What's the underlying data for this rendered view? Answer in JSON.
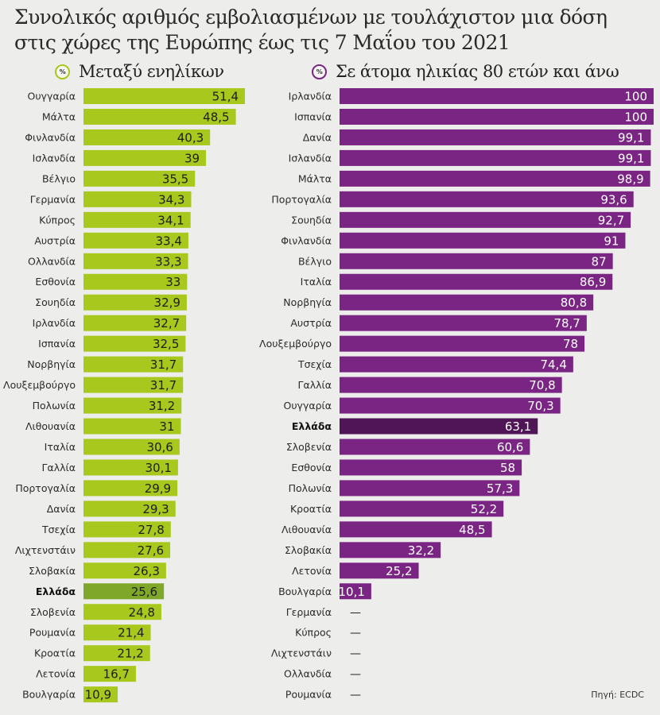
{
  "title_line1": "Συνολικός αριθμός εμβολιασμένων με τουλάχιστον μια δόση",
  "title_line2": "στις χώρες της Ευρώπης έως τις 7 Μαΐου του 2021",
  "source": "Πηγή: ECDC",
  "chart_data": [
    {
      "type": "bar",
      "orientation": "horizontal",
      "title": "Μεταξύ ενηλίκων",
      "unit_icon": "%",
      "color": "#a8c81e",
      "highlight_color": "#7fa82a",
      "highlight": "Ελλάδα",
      "xlim": [
        0,
        100
      ],
      "categories": [
        "Ουγγαρία",
        "Μάλτα",
        "Φινλανδία",
        "Ισλανδία",
        "Βέλγιο",
        "Γερμανία",
        "Κύπρος",
        "Αυστρία",
        "Ολλανδία",
        "Εσθονία",
        "Σουηδία",
        "Ιρλανδία",
        "Ισπανία",
        "Νορβηγία",
        "Λουξεμβούργο",
        "Πολωνία",
        "Λιθουανία",
        "Ιταλία",
        "Γαλλία",
        "Πορτογαλία",
        "Δανία",
        "Τσεχία",
        "Λιχτενστάιν",
        "Σλοβακία",
        "Ελλάδα",
        "Σλοβενία",
        "Ρουμανία",
        "Κροατία",
        "Λετονία",
        "Βουλγαρία"
      ],
      "values": [
        51.4,
        48.5,
        40.3,
        39,
        35.5,
        34.3,
        34.1,
        33.4,
        33.3,
        33,
        32.9,
        32.7,
        32.5,
        31.7,
        31.7,
        31.2,
        31,
        30.6,
        30.1,
        29.9,
        29.3,
        27.8,
        27.6,
        26.3,
        25.6,
        24.8,
        21.4,
        21.2,
        16.7,
        10.9
      ],
      "value_labels": [
        "51,4",
        "48,5",
        "40,3",
        "39",
        "35,5",
        "34,3",
        "34,1",
        "33,4",
        "33,3",
        "33",
        "32,9",
        "32,7",
        "32,5",
        "31,7",
        "31,7",
        "31,2",
        "31",
        "30,6",
        "30,1",
        "29,9",
        "29,3",
        "27,8",
        "27,6",
        "26,3",
        "25,6",
        "24,8",
        "21,4",
        "21,2",
        "16,7",
        "10,9"
      ]
    },
    {
      "type": "bar",
      "orientation": "horizontal",
      "title": "Σε άτομα ηλικίας 80 ετών και άνω",
      "unit_icon": "%",
      "color": "#7a2583",
      "highlight_color": "#4f1556",
      "highlight": "Ελλάδα",
      "xlim": [
        0,
        100
      ],
      "categories": [
        "Ιρλανδία",
        "Ισπανία",
        "Δανία",
        "Ισλανδία",
        "Μάλτα",
        "Πορτογαλία",
        "Σουηδία",
        "Φινλανδία",
        "Βέλγιο",
        "Ιταλία",
        "Νορβηγία",
        "Αυστρία",
        "Λουξεμβούργο",
        "Τσεχία",
        "Γαλλία",
        "Ουγγαρία",
        "Ελλάδα",
        "Σλοβενία",
        "Εσθονία",
        "Πολωνία",
        "Κροατία",
        "Λιθουανία",
        "Σλοβακία",
        "Λετονία",
        "Βουλγαρία",
        "Γερμανία",
        "Κύπρος",
        "Λιχτενστάιν",
        "Ολλανδία",
        "Ρουμανία"
      ],
      "values": [
        100,
        100,
        99.1,
        99.1,
        98.9,
        93.6,
        92.7,
        91,
        87,
        86.9,
        80.8,
        78.7,
        78,
        74.4,
        70.8,
        70.3,
        63.1,
        60.6,
        58,
        57.3,
        52.2,
        48.5,
        32.2,
        25.2,
        10.1,
        null,
        null,
        null,
        null,
        null
      ],
      "value_labels": [
        "100",
        "100",
        "99,1",
        "99,1",
        "98,9",
        "93,6",
        "92,7",
        "91",
        "87",
        "86,9",
        "80,8",
        "78,7",
        "78",
        "74,4",
        "70,8",
        "70,3",
        "63,1",
        "60,6",
        "58",
        "57,3",
        "52,2",
        "48,5",
        "32,2",
        "25,2",
        "10,1",
        "—",
        "—",
        "—",
        "—",
        "—"
      ]
    }
  ]
}
